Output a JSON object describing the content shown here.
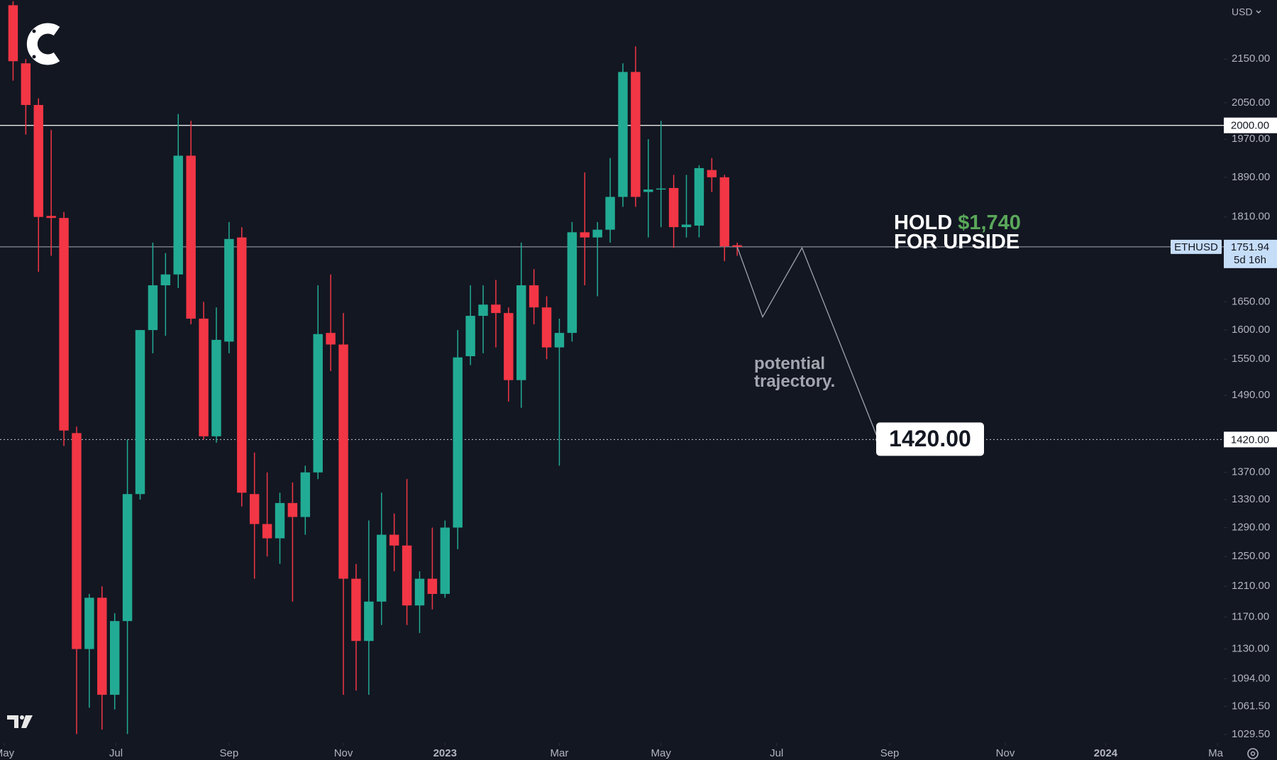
{
  "chart_data": {
    "type": "candlestick",
    "symbol": "ETHUSD",
    "currency": "USD",
    "log_scale": true,
    "grid": false,
    "up_color": "#22ab94",
    "down_color": "#f23645",
    "background": "#131722",
    "xlim": [
      -1.03,
      95.3
    ],
    "xticks": [
      {
        "value": -0.7,
        "label": "May"
      },
      {
        "value": 8.1,
        "label": "Jul"
      },
      {
        "value": 17.0,
        "label": "Sep"
      },
      {
        "value": 26.0,
        "label": "Nov"
      },
      {
        "value": 34.0,
        "label": "2023"
      },
      {
        "value": 43.0,
        "label": "Mar"
      },
      {
        "value": 51.0,
        "label": "May"
      },
      {
        "value": 60.1,
        "label": "Jul"
      },
      {
        "value": 69.0,
        "label": "Sep"
      },
      {
        "value": 78.1,
        "label": "Nov"
      },
      {
        "value": 86.0,
        "label": "2024"
      },
      {
        "value": 94.8,
        "label": "Mar"
      }
    ],
    "ylim": [
      1020,
      2293
    ],
    "yticks": [
      {
        "value": 2150,
        "label": "2150.00"
      },
      {
        "value": 2050,
        "label": "2050.00"
      },
      {
        "value": 1970,
        "label": "1970.00"
      },
      {
        "value": 1890,
        "label": "1890.00"
      },
      {
        "value": 1810,
        "label": "1810.00"
      },
      {
        "value": 1650,
        "label": "1650.00"
      },
      {
        "value": 1600,
        "label": "1600.00"
      },
      {
        "value": 1550,
        "label": "1550.00"
      },
      {
        "value": 1490,
        "label": "1490.00"
      },
      {
        "value": 1370,
        "label": "1370.00"
      },
      {
        "value": 1330,
        "label": "1330.00"
      },
      {
        "value": 1290,
        "label": "1290.00"
      },
      {
        "value": 1250,
        "label": "1250.00"
      },
      {
        "value": 1210,
        "label": "1210.00"
      },
      {
        "value": 1170,
        "label": "1170.00"
      },
      {
        "value": 1130,
        "label": "1130.00"
      },
      {
        "value": 1094,
        "label": "1094.00"
      },
      {
        "value": 1061.5,
        "label": "1061.50"
      },
      {
        "value": 1029.5,
        "label": "1029.50"
      }
    ],
    "open": [
      2280,
      2140,
      2045,
      1812,
      1808,
      1430,
      1130,
      1195,
      1075,
      1165,
      1338,
      1600,
      1680,
      1700,
      1935,
      1620,
      1425,
      1580,
      1770,
      1338,
      1295,
      1275,
      1325,
      1305,
      1370,
      1595,
      1575,
      1220,
      1140,
      1190,
      1280,
      1265,
      1185,
      1220,
      1200,
      1290,
      1555,
      1625,
      1645,
      1630,
      1515,
      1680,
      1640,
      1570,
      1595,
      1780,
      1770,
      1785,
      1850,
      2120,
      1860,
      1865,
      1868,
      1790,
      1793,
      1905,
      1890,
      1755
    ],
    "high": [
      2290,
      2150,
      2060,
      1990,
      1820,
      1440,
      1200,
      1210,
      1175,
      1420,
      1600,
      1760,
      1740,
      2025,
      2010,
      1650,
      1640,
      1800,
      1790,
      1400,
      1370,
      1340,
      1355,
      1380,
      1680,
      1700,
      1630,
      1240,
      1300,
      1340,
      1310,
      1360,
      1230,
      1290,
      1300,
      1600,
      1680,
      1680,
      1690,
      1640,
      1760,
      1710,
      1660,
      1620,
      1800,
      1900,
      1800,
      1930,
      2140,
      2180,
      1970,
      2010,
      1895,
      1895,
      1915,
      1930,
      1895,
      1760
    ],
    "low": [
      2100,
      1980,
      1705,
      1735,
      1410,
      1030,
      1060,
      1035,
      1058,
      1030,
      1330,
      1560,
      1590,
      1675,
      1610,
      1420,
      1415,
      1560,
      1320,
      1220,
      1250,
      1240,
      1190,
      1280,
      1360,
      1530,
      1075,
      1080,
      1075,
      1160,
      1230,
      1160,
      1150,
      1180,
      1195,
      1260,
      1540,
      1560,
      1570,
      1480,
      1470,
      1610,
      1550,
      1380,
      1580,
      1680,
      1660,
      1760,
      1830,
      1830,
      1770,
      1790,
      1750,
      1770,
      1770,
      1860,
      1725,
      1735
    ],
    "close": [
      2145,
      2045,
      1810,
      1808,
      1434,
      1130,
      1195,
      1075,
      1165,
      1338,
      1600,
      1680,
      1700,
      1935,
      1620,
      1425,
      1583,
      1767,
      1340,
      1295,
      1275,
      1325,
      1305,
      1370,
      1593,
      1575,
      1220,
      1140,
      1190,
      1280,
      1265,
      1185,
      1220,
      1200,
      1290,
      1553,
      1625,
      1645,
      1630,
      1515,
      1680,
      1640,
      1570,
      1595,
      1780,
      1770,
      1785,
      1850,
      2120,
      1850,
      1865,
      1867,
      1790,
      1795,
      1909,
      1890,
      1753,
      1751.94
    ],
    "levels": [
      {
        "value": 2000,
        "label": "2000.00"
      }
    ],
    "last_price": {
      "value": 1751.94,
      "label": "1751.94",
      "countdown": "5d 16h"
    },
    "target": {
      "value": 1420,
      "label": "1420.00"
    },
    "trajectory": {
      "x": [
        57,
        59,
        62.1,
        68.1
      ],
      "y": [
        1751.94,
        1623,
        1750,
        1420
      ]
    },
    "hold_note": {
      "prefix": "HOLD",
      "price": "$1,740",
      "suffix": "FOR UPSIDE",
      "price_color": "#5aa85a"
    },
    "trajectory_note": [
      "potential",
      "trajectory."
    ]
  }
}
